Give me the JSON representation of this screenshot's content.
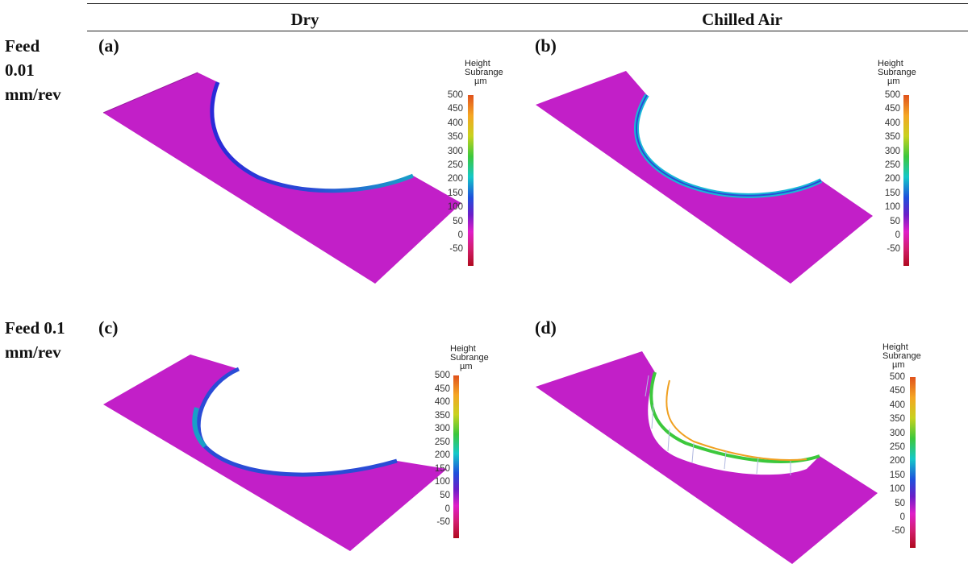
{
  "columns": {
    "dry": "Dry",
    "chilled": "Chilled Air"
  },
  "rows": {
    "feed_001": [
      "Feed",
      "0.01",
      "mm/rev"
    ],
    "feed_01": [
      "Feed 0.1",
      "mm/rev"
    ]
  },
  "panels": {
    "a": {
      "label": "(a)"
    },
    "b": {
      "label": "(b)"
    },
    "c": {
      "label": "(c)"
    },
    "d": {
      "label": "(d)"
    }
  },
  "colorbar": {
    "title_lines": [
      "Height",
      "Subrange",
      "µm"
    ],
    "ticks": [
      "500",
      "450",
      "400",
      "350",
      "300",
      "250",
      "200",
      "150",
      "100",
      "50",
      "0",
      "-50"
    ]
  },
  "colors": {
    "surface": "#c21fc8",
    "edge_blue": "#2a4cd6",
    "edge_cyan": "#18c0d8"
  }
}
